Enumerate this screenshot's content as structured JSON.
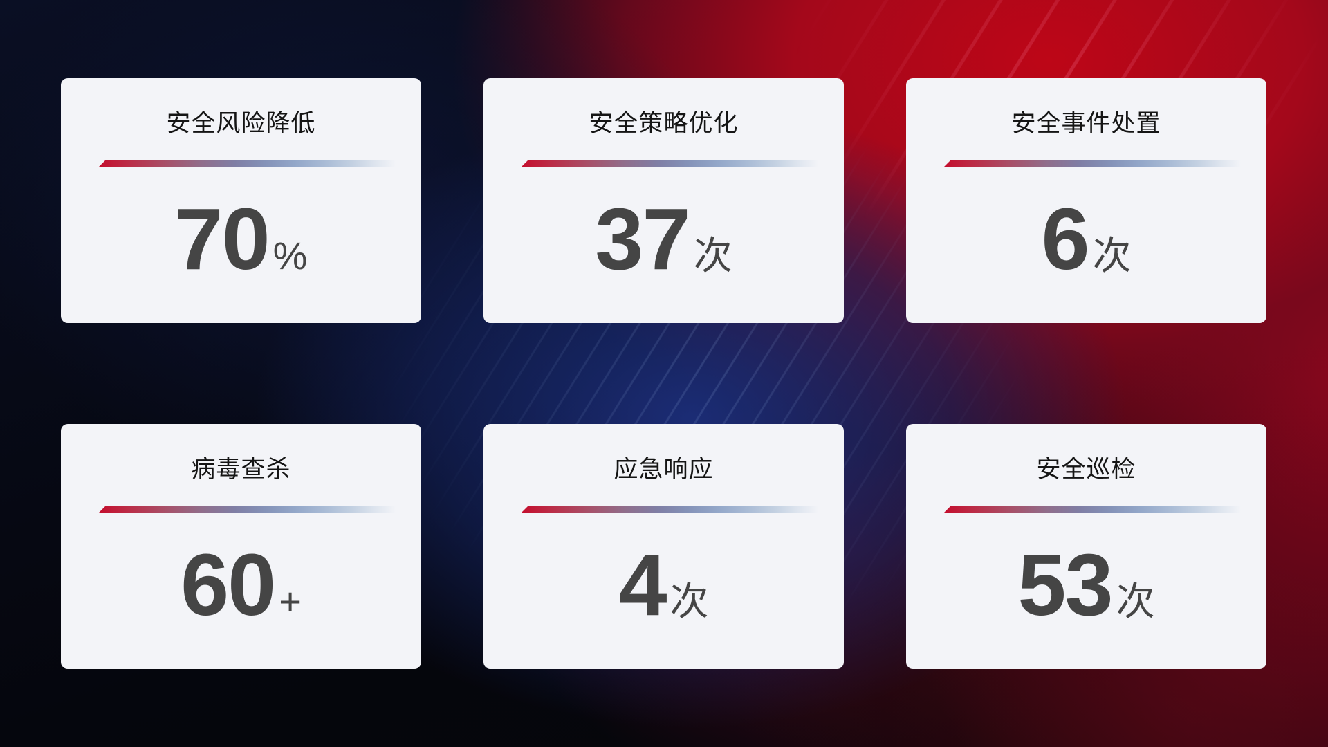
{
  "theme": {
    "card_background": "#f3f4f8",
    "title_color": "#151515",
    "value_color": "#454545",
    "divider_gradient_start": "#c40d2d",
    "divider_gradient_mid": "#7f7ea5",
    "divider_gradient_end": "#dde4ee",
    "background_red": "#b8061a",
    "background_blue": "#1b2e7a",
    "background_base": "#06070f"
  },
  "cards": [
    {
      "title": "安全风险降低",
      "value": "70",
      "unit": "%"
    },
    {
      "title": "安全策略优化",
      "value": "37",
      "unit": "次"
    },
    {
      "title": "安全事件处置",
      "value": "6",
      "unit": "次"
    },
    {
      "title": "病毒查杀",
      "value": "60",
      "unit": "+"
    },
    {
      "title": "应急响应",
      "value": "4",
      "unit": "次"
    },
    {
      "title": "安全巡检",
      "value": "53",
      "unit": "次"
    }
  ],
  "chart_data": {
    "type": "table",
    "categories": [
      "安全风险降低",
      "安全策略优化",
      "安全事件处置",
      "病毒查杀",
      "应急响应",
      "安全巡检"
    ],
    "values": [
      70,
      37,
      6,
      60,
      4,
      53
    ],
    "units": [
      "%",
      "次",
      "次",
      "+",
      "次",
      "次"
    ],
    "layout": "2 rows x 3 columns stat cards on dark red/blue gradient background"
  }
}
